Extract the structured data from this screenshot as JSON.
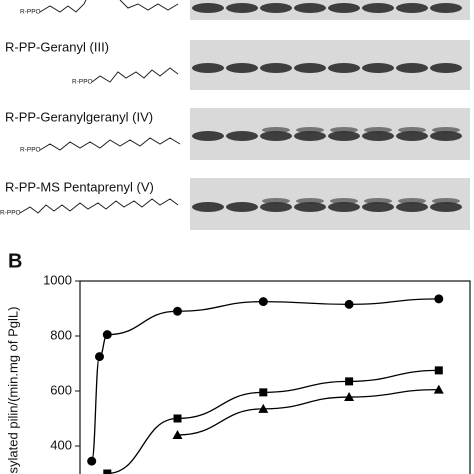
{
  "panel_a": {
    "labels": [
      "R-PP-Geranyl (III)",
      "R-PP-Geranylgeranyl (IV)",
      "R-PP-MS Pentaprenyl (V)"
    ],
    "structure_labels": [
      "R-PPO",
      "R-PPO",
      "R-PPO",
      "R-PPO"
    ]
  },
  "chart_data": {
    "type": "scatter",
    "panel_label": "B",
    "ylabel": "sylated pilin/(min.mg of PglL)",
    "xlim": [
      0,
      100
    ],
    "ylim": [
      300,
      1000
    ],
    "yticks": [
      400,
      600,
      800,
      1000
    ],
    "series": [
      {
        "marker": "circle",
        "color": "#000000",
        "x": [
          3,
          5,
          7,
          25,
          47,
          69,
          92
        ],
        "values": [
          345,
          725,
          805,
          890,
          925,
          915,
          935
        ]
      },
      {
        "marker": "square",
        "color": "#000000",
        "x": [
          7,
          25,
          47,
          69,
          92
        ],
        "values": [
          300,
          500,
          595,
          635,
          675
        ]
      },
      {
        "marker": "triangle",
        "color": "#000000",
        "x": [
          25,
          47,
          69,
          92
        ],
        "values": [
          440,
          535,
          578,
          605
        ]
      }
    ]
  }
}
